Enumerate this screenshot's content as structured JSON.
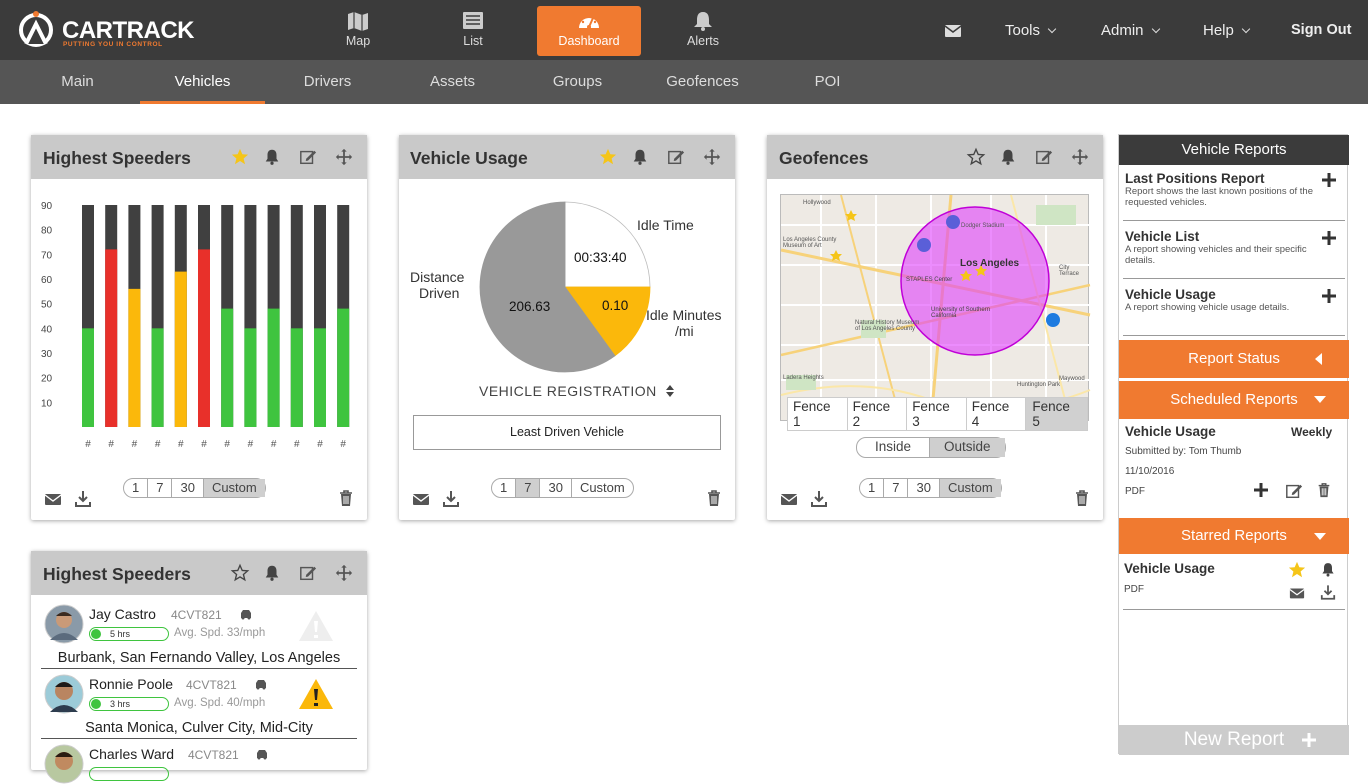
{
  "brand": {
    "name": "CARTRACK",
    "tagline": "PUTTING YOU IN CONTROL",
    "accent": "#f07a30"
  },
  "nav": {
    "map": "Map",
    "list": "List",
    "dashboard": "Dashboard",
    "alerts": "Alerts"
  },
  "topright": {
    "tools": "Tools",
    "admin": "Admin",
    "help": "Help",
    "signout": "Sign Out"
  },
  "tabs": [
    "Main",
    "Vehicles",
    "Drivers",
    "Assets",
    "Groups",
    "Geofences",
    "POI"
  ],
  "speeders_chart": {
    "title": "Highest Speeders",
    "chart_data": {
      "type": "bar",
      "yticks": [
        90,
        80,
        70,
        60,
        50,
        40,
        30,
        20,
        10
      ],
      "ylim": [
        0,
        90
      ],
      "categories": [
        "#",
        "#",
        "#",
        "#",
        "#",
        "#",
        "#",
        "#",
        "#",
        "#",
        "#",
        "#"
      ],
      "values": [
        40,
        72,
        56,
        40,
        63,
        72,
        48,
        40,
        48,
        40,
        40,
        48
      ],
      "colors": [
        "#3fc43f",
        "#e8302a",
        "#fbb80b",
        "#3fc43f",
        "#fbb80b",
        "#e8302a",
        "#3fc43f",
        "#3fc43f",
        "#3fc43f",
        "#3fc43f",
        "#3fc43f",
        "#3fc43f"
      ]
    },
    "periods": [
      "1",
      "7",
      "30",
      "Custom"
    ],
    "selected": "Custom"
  },
  "usage": {
    "title": "Vehicle Usage",
    "chart_data": {
      "type": "pie",
      "slices": [
        {
          "label": "Idle Time",
          "value_label": "00:33:40",
          "share": 0.25,
          "color": "#ffffff"
        },
        {
          "label": "Idle Minutes /mi",
          "value_label": "0.10",
          "share": 0.15,
          "color": "#fbb80b"
        },
        {
          "label": "Distance Driven",
          "value_label": "206.63",
          "share": 0.6,
          "color": "#999999"
        }
      ]
    },
    "labels": {
      "idle_time": "Idle Time",
      "idle_min_1": "Idle Minutes",
      "idle_min_2": "/mi",
      "dist_1": "Distance",
      "dist_2": "Driven",
      "v_idle": "00:33:40",
      "v_idlemin": "0.10",
      "v_dist": "206.63"
    },
    "registration": "VEHICLE REGISTRATION",
    "select": "Least Driven Vehicle",
    "periods": [
      "1",
      "7",
      "30",
      "Custom"
    ],
    "selected": "7"
  },
  "geofences": {
    "title": "Geofences",
    "city": "Los Angeles",
    "fences": [
      "Fence 1",
      "Fence 2",
      "Fence 3",
      "Fence 4",
      "Fence 5"
    ],
    "selected_fence": "Fence 5",
    "toggle": [
      "Inside",
      "Outside"
    ],
    "selected_toggle": "Outside",
    "periods": [
      "1",
      "7",
      "30",
      "Custom"
    ],
    "selected": "Custom",
    "map_labels": [
      "Hollywood",
      "Los Angeles County Museum of Art",
      "STAPLES Center",
      "University of Southern California",
      "Natural History Museum of Los Angeles County",
      "Huntington Park",
      "Maywood",
      "City Terrace",
      "Ladera Heights",
      "Dodger Stadium"
    ]
  },
  "speeders_list": {
    "title": "Highest Speeders",
    "drivers": [
      {
        "name": "Jay Castro",
        "plate": "4CVT821",
        "hours": "5 hrs",
        "avg": "Avg. Spd. 33/mph",
        "area": "Burbank, San Fernando Valley, Los Angeles",
        "warn": false
      },
      {
        "name": "Ronnie Poole",
        "plate": "4CVT821",
        "hours": "3 hrs",
        "avg": "Avg. Spd. 40/mph",
        "area": "Santa Monica, Culver City, Mid-City",
        "warn": true
      },
      {
        "name": "Charles Ward",
        "plate": "4CVT821",
        "hours": "",
        "avg": "",
        "area": "",
        "warn": false
      }
    ]
  },
  "reports": {
    "header": "Vehicle Reports",
    "items": [
      {
        "title": "Last Positions Report",
        "desc": "Report shows the last known positions of the requested vehicles."
      },
      {
        "title": "Vehicle List",
        "desc": "A report showing vehicles and their specific details."
      },
      {
        "title": "Vehicle Usage",
        "desc": "A report showing vehicle usage details."
      }
    ],
    "status": "Report Status",
    "scheduled": "Scheduled Reports",
    "sched_item": {
      "title": "Vehicle Usage",
      "freq": "Weekly",
      "by": "Submitted by: Tom Thumb",
      "date": "11/10/2016",
      "format": "PDF"
    },
    "starred": "Starred Reports",
    "star_item": {
      "title": "Vehicle Usage",
      "format": "PDF"
    },
    "new": "New Report"
  }
}
